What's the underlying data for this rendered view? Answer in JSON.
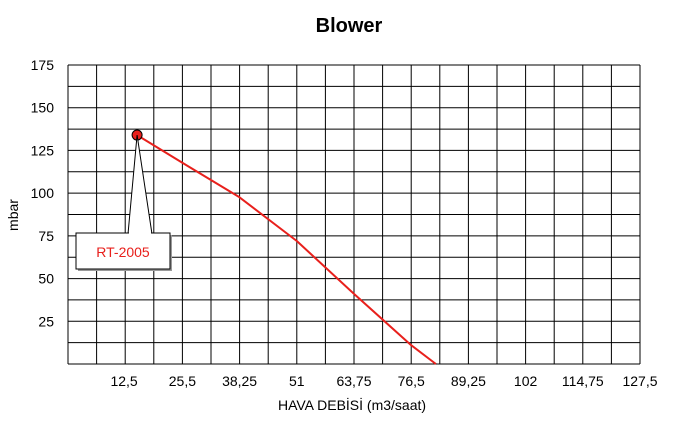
{
  "chart_data": {
    "type": "line",
    "title": "Blower",
    "xlabel": "HAVA DEBİSİ (m3/saat)",
    "ylabel": "mbar",
    "x_ticks": [
      "12,5",
      "25,5",
      "38,25",
      "51",
      "63,75",
      "76,5",
      "89,25",
      "102",
      "114,75",
      "127,5"
    ],
    "y_ticks": [
      "25",
      "50",
      "75",
      "100",
      "125",
      "150",
      "175"
    ],
    "xlim": [
      0,
      127.5
    ],
    "ylim": [
      0,
      175
    ],
    "grid": true,
    "series": [
      {
        "name": "RT-2005",
        "color": "#e8201c",
        "x": [
          15.4,
          26,
          38,
          51,
          63.75,
          76.5,
          82
        ],
        "y": [
          134,
          117,
          98,
          72,
          41,
          11,
          0
        ]
      }
    ],
    "marker_point": {
      "x": 15.4,
      "y": 134
    },
    "annotation": "RT-2005"
  }
}
